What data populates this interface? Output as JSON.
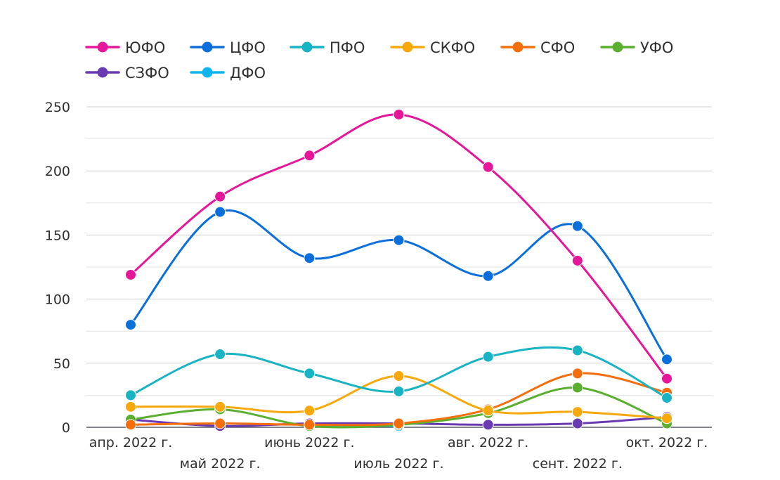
{
  "chart_data": {
    "type": "line",
    "title": "",
    "xlabel": "",
    "ylabel": "",
    "categories": [
      "апр. 2022 г.",
      "май 2022 г.",
      "июнь 2022 г.",
      "июль 2022 г.",
      "авг. 2022 г.",
      "сент. 2022 г.",
      "окт. 2022 г."
    ],
    "ylim": [
      0,
      250
    ],
    "yticks": [
      0,
      50,
      100,
      150,
      200,
      250
    ],
    "grid": true,
    "smooth": true,
    "legend_position": "top-left",
    "series": [
      {
        "name": "ЮФО",
        "color": "#e6169a",
        "values": [
          119,
          180,
          212,
          244,
          203,
          130,
          38
        ]
      },
      {
        "name": "ЦФО",
        "color": "#0a6fdb",
        "values": [
          80,
          168,
          132,
          146,
          118,
          157,
          53
        ]
      },
      {
        "name": "ПФО",
        "color": "#19b4c4",
        "values": [
          25,
          57,
          42,
          28,
          55,
          60,
          23
        ]
      },
      {
        "name": "СКФО",
        "color": "#f7a90c",
        "values": [
          16,
          16,
          13,
          40,
          13,
          12,
          7
        ]
      },
      {
        "name": "СФО",
        "color": "#f56e0c",
        "values": [
          2,
          3,
          2,
          3,
          14,
          42,
          27
        ]
      },
      {
        "name": "УФО",
        "color": "#5aaf2f",
        "values": [
          6,
          14,
          1,
          2,
          11,
          31,
          3
        ]
      },
      {
        "name": "СЗФО",
        "color": "#6a3ab2",
        "values": [
          6,
          1,
          3,
          3,
          2,
          3,
          8
        ]
      },
      {
        "name": "ДФО",
        "color": "#0fb6ee",
        "values": [
          null,
          null,
          1,
          1,
          null,
          null,
          null
        ]
      }
    ]
  }
}
